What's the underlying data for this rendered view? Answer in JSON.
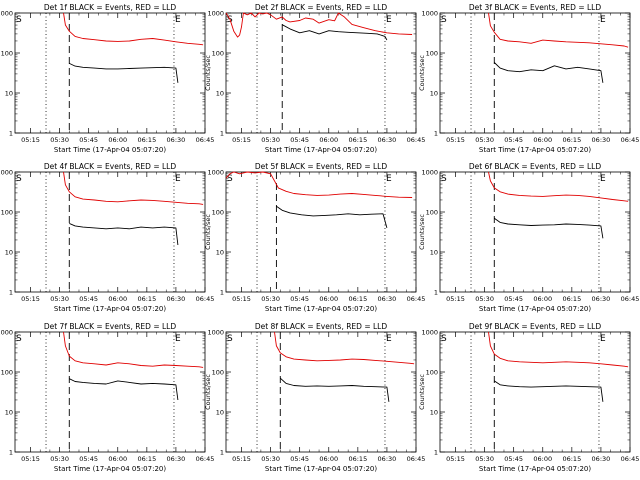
{
  "figure": {
    "y_label": "Counts/sec",
    "x_label": "Start Time (17-Apr-04 05:07:20)",
    "start_marker": "S",
    "end_marker": "E",
    "colors": {
      "events": "#000000",
      "lld": "#e00000",
      "frame": "#000000"
    }
  },
  "chart_data": [
    {
      "type": "line",
      "title": "Det 1f BLACK = Events, RED = LLD",
      "ylog": true,
      "ylim": [
        1,
        1000
      ],
      "yticks": [
        "1",
        "10",
        "100",
        "1000"
      ],
      "xticks": [
        "05:15",
        "05:30",
        "05:45",
        "06:00",
        "06:15",
        "06:30",
        "06:45"
      ],
      "x_minutes": [
        0,
        15,
        30,
        45,
        60,
        75,
        90
      ],
      "start_marker_time": "05:07",
      "end_marker_time": "06:29",
      "dotted_lines": [
        "05:23",
        "06:29"
      ],
      "dashed_line": "05:35",
      "series": [
        {
          "name": "Events",
          "color": "#000000",
          "x": [
            "05:35",
            "05:38",
            "05:42",
            "05:48",
            "05:54",
            "06:00",
            "06:06",
            "06:12",
            "06:18",
            "06:24",
            "06:30",
            "06:31"
          ],
          "y": [
            55,
            47,
            44,
            42,
            40,
            40,
            41,
            42,
            43,
            44,
            42,
            18
          ]
        },
        {
          "name": "LLD",
          "color": "#e00000",
          "x": [
            "05:32",
            "05:33",
            "05:35",
            "05:38",
            "05:42",
            "05:48",
            "05:54",
            "06:00",
            "06:06",
            "06:12",
            "06:18",
            "06:24",
            "06:30",
            "06:36",
            "06:42",
            "06:44"
          ],
          "y": [
            1000,
            500,
            350,
            260,
            230,
            215,
            200,
            195,
            200,
            220,
            230,
            210,
            190,
            175,
            165,
            160
          ]
        }
      ]
    },
    {
      "type": "line",
      "title": "Det 2f BLACK = Events, RED = LLD",
      "ylog": true,
      "ylim": [
        1,
        1000
      ],
      "yticks": [
        "1",
        "10",
        "100",
        "1000"
      ],
      "xticks": [
        "05:15",
        "05:30",
        "05:45",
        "06:00",
        "06:15",
        "06:30",
        "06:45"
      ],
      "x_minutes": [
        0,
        15,
        30,
        45,
        60,
        75,
        90
      ],
      "start_marker_time": "05:07",
      "end_marker_time": "06:29",
      "dotted_lines": [
        "05:23",
        "06:29"
      ],
      "dashed_line": "05:36",
      "series": [
        {
          "name": "Events",
          "color": "#000000",
          "x": [
            "05:36",
            "05:40",
            "05:45",
            "05:50",
            "05:55",
            "06:00",
            "06:05",
            "06:10",
            "06:15",
            "06:20",
            "06:25",
            "06:29",
            "06:30"
          ],
          "y": [
            510,
            400,
            320,
            360,
            300,
            360,
            340,
            330,
            320,
            310,
            300,
            260,
            210
          ]
        },
        {
          "name": "LLD",
          "color": "#e00000",
          "x": [
            "05:07",
            "05:09",
            "05:11",
            "05:13",
            "05:14",
            "05:15",
            "05:16",
            "05:18",
            "05:20",
            "05:22",
            "05:24",
            "05:26",
            "05:28",
            "05:30",
            "05:33",
            "05:36",
            "05:38",
            "05:40",
            "05:45",
            "05:48",
            "05:52",
            "05:55",
            "06:00",
            "06:03",
            "06:05",
            "06:08",
            "06:12",
            "06:18",
            "06:24",
            "06:30",
            "06:36",
            "06:43"
          ],
          "y": [
            1000,
            700,
            350,
            250,
            280,
            450,
            1000,
            900,
            1000,
            800,
            1000,
            950,
            1000,
            900,
            700,
            800,
            650,
            600,
            650,
            750,
            700,
            560,
            680,
            640,
            1000,
            800,
            520,
            430,
            360,
            320,
            300,
            290
          ]
        }
      ]
    },
    {
      "type": "line",
      "title": "Det 3f BLACK = Events, RED = LLD",
      "ylog": true,
      "ylim": [
        1,
        1000
      ],
      "yticks": [
        "1",
        "10",
        "100",
        "1000"
      ],
      "xticks": [
        "05:15",
        "05:30",
        "05:45",
        "06:00",
        "06:15",
        "06:30",
        "06:45"
      ],
      "x_minutes": [
        0,
        15,
        30,
        45,
        60,
        75,
        90
      ],
      "start_marker_time": "05:07",
      "end_marker_time": "06:29",
      "dotted_lines": [
        "05:23",
        "06:29"
      ],
      "dashed_line": "05:35",
      "series": [
        {
          "name": "Events",
          "color": "#000000",
          "x": [
            "05:35",
            "05:38",
            "05:42",
            "05:48",
            "05:54",
            "06:00",
            "06:06",
            "06:12",
            "06:18",
            "06:24",
            "06:30",
            "06:31"
          ],
          "y": [
            58,
            42,
            36,
            34,
            38,
            36,
            48,
            40,
            44,
            40,
            36,
            18
          ]
        },
        {
          "name": "LLD",
          "color": "#e00000",
          "x": [
            "05:32",
            "05:33",
            "05:35",
            "05:38",
            "05:42",
            "05:48",
            "05:54",
            "06:00",
            "06:06",
            "06:12",
            "06:18",
            "06:24",
            "06:30",
            "06:36",
            "06:42",
            "06:44"
          ],
          "y": [
            1000,
            480,
            330,
            220,
            200,
            190,
            175,
            210,
            200,
            190,
            185,
            180,
            170,
            160,
            150,
            140
          ]
        }
      ]
    },
    {
      "type": "line",
      "title": "Det 4f BLACK = Events, RED = LLD",
      "ylog": true,
      "ylim": [
        1,
        1000
      ],
      "yticks": [
        "1",
        "10",
        "100",
        "1000"
      ],
      "xticks": [
        "05:15",
        "05:30",
        "05:45",
        "06:00",
        "06:15",
        "06:30",
        "06:45"
      ],
      "x_minutes": [
        0,
        15,
        30,
        45,
        60,
        75,
        90
      ],
      "start_marker_time": "05:07",
      "end_marker_time": "06:29",
      "dotted_lines": [
        "05:23",
        "06:29"
      ],
      "dashed_line": "05:35",
      "series": [
        {
          "name": "Events",
          "color": "#000000",
          "x": [
            "05:35",
            "05:38",
            "05:42",
            "05:48",
            "05:54",
            "06:00",
            "06:06",
            "06:12",
            "06:18",
            "06:24",
            "06:30",
            "06:31"
          ],
          "y": [
            52,
            45,
            42,
            40,
            38,
            40,
            38,
            42,
            40,
            42,
            40,
            15
          ]
        },
        {
          "name": "LLD",
          "color": "#e00000",
          "x": [
            "05:32",
            "05:33",
            "05:35",
            "05:38",
            "05:42",
            "05:48",
            "05:54",
            "06:00",
            "06:06",
            "06:12",
            "06:18",
            "06:24",
            "06:30",
            "06:36",
            "06:42",
            "06:44"
          ],
          "y": [
            1000,
            480,
            320,
            240,
            210,
            200,
            185,
            180,
            190,
            200,
            195,
            185,
            175,
            165,
            160,
            155
          ]
        }
      ]
    },
    {
      "type": "line",
      "title": "Det 5f BLACK = Events, RED = LLD",
      "ylog": true,
      "ylim": [
        1,
        1000
      ],
      "yticks": [
        "1",
        "10",
        "100",
        "1000"
      ],
      "xticks": [
        "05:15",
        "05:30",
        "05:45",
        "06:00",
        "06:15",
        "06:30",
        "06:45"
      ],
      "x_minutes": [
        0,
        15,
        30,
        45,
        60,
        75,
        90
      ],
      "start_marker_time": "05:07",
      "end_marker_time": "06:29",
      "dotted_lines": [
        "05:23",
        "06:29"
      ],
      "dashed_line": "05:33",
      "series": [
        {
          "name": "Events",
          "color": "#000000",
          "x": [
            "05:33",
            "05:36",
            "05:40",
            "05:46",
            "05:52",
            "05:58",
            "06:04",
            "06:10",
            "06:16",
            "06:22",
            "06:28",
            "06:30"
          ],
          "y": [
            140,
            110,
            95,
            85,
            80,
            82,
            85,
            90,
            85,
            88,
            90,
            40
          ]
        },
        {
          "name": "LLD",
          "color": "#e00000",
          "x": [
            "05:07",
            "05:09",
            "05:11",
            "05:14",
            "05:18",
            "05:22",
            "05:26",
            "05:30",
            "05:34",
            "05:38",
            "05:42",
            "05:48",
            "05:54",
            "06:00",
            "06:06",
            "06:12",
            "06:18",
            "06:24",
            "06:30",
            "06:36",
            "06:43"
          ],
          "y": [
            700,
            900,
            1000,
            900,
            1000,
            950,
            1000,
            900,
            400,
            330,
            290,
            270,
            260,
            265,
            280,
            290,
            275,
            260,
            245,
            235,
            230
          ]
        }
      ]
    },
    {
      "type": "line",
      "title": "Det 6f BLACK = Events, RED = LLD",
      "ylog": true,
      "ylim": [
        1,
        1000
      ],
      "yticks": [
        "1",
        "10",
        "100",
        "1000"
      ],
      "xticks": [
        "05:15",
        "05:30",
        "05:45",
        "06:00",
        "06:15",
        "06:30",
        "06:45"
      ],
      "x_minutes": [
        0,
        15,
        30,
        45,
        60,
        75,
        90
      ],
      "start_marker_time": "05:07",
      "end_marker_time": "06:29",
      "dotted_lines": [
        "05:23",
        "06:29"
      ],
      "dashed_line": "05:35",
      "series": [
        {
          "name": "Events",
          "color": "#000000",
          "x": [
            "05:35",
            "05:38",
            "05:42",
            "05:48",
            "05:54",
            "06:00",
            "06:06",
            "06:12",
            "06:18",
            "06:24",
            "06:30",
            "06:31"
          ],
          "y": [
            70,
            55,
            50,
            48,
            46,
            47,
            48,
            50,
            49,
            47,
            45,
            22
          ]
        },
        {
          "name": "LLD",
          "color": "#e00000",
          "x": [
            "05:32",
            "05:33",
            "05:35",
            "05:38",
            "05:42",
            "05:48",
            "05:54",
            "06:00",
            "06:06",
            "06:12",
            "06:18",
            "06:24",
            "06:30",
            "06:36",
            "06:42",
            "06:44"
          ],
          "y": [
            1000,
            600,
            400,
            320,
            280,
            260,
            250,
            245,
            255,
            265,
            260,
            245,
            225,
            205,
            190,
            185
          ]
        }
      ]
    },
    {
      "type": "line",
      "title": "Det 7f BLACK = Events, RED = LLD",
      "ylog": true,
      "ylim": [
        1,
        1000
      ],
      "yticks": [
        "1",
        "10",
        "100",
        "1000"
      ],
      "xticks": [
        "05:15",
        "05:30",
        "05:45",
        "06:00",
        "06:15",
        "06:30",
        "06:45"
      ],
      "x_minutes": [
        0,
        15,
        30,
        45,
        60,
        75,
        90
      ],
      "start_marker_time": "05:07",
      "end_marker_time": "06:29",
      "dotted_lines": [
        "05:23",
        "06:29"
      ],
      "dashed_line": "05:35",
      "series": [
        {
          "name": "Events",
          "color": "#000000",
          "x": [
            "05:35",
            "05:38",
            "05:42",
            "05:48",
            "05:54",
            "06:00",
            "06:06",
            "06:12",
            "06:18",
            "06:24",
            "06:30",
            "06:31"
          ],
          "y": [
            68,
            58,
            55,
            52,
            50,
            60,
            55,
            50,
            52,
            50,
            48,
            20
          ]
        },
        {
          "name": "LLD",
          "color": "#e00000",
          "x": [
            "05:32",
            "05:33",
            "05:35",
            "05:38",
            "05:42",
            "05:48",
            "05:54",
            "06:00",
            "06:06",
            "06:12",
            "06:18",
            "06:24",
            "06:30",
            "06:36",
            "06:42",
            "06:44"
          ],
          "y": [
            1000,
            450,
            250,
            190,
            170,
            160,
            150,
            170,
            160,
            145,
            140,
            150,
            145,
            140,
            135,
            130
          ]
        }
      ]
    },
    {
      "type": "line",
      "title": "Det 8f BLACK = Events, RED = LLD",
      "ylog": true,
      "ylim": [
        1,
        1000
      ],
      "yticks": [
        "1",
        "10",
        "100",
        "1000"
      ],
      "xticks": [
        "05:15",
        "05:30",
        "05:45",
        "06:00",
        "06:15",
        "06:30",
        "06:45"
      ],
      "x_minutes": [
        0,
        15,
        30,
        45,
        60,
        75,
        90
      ],
      "start_marker_time": "05:07",
      "end_marker_time": "06:29",
      "dotted_lines": [
        "05:23",
        "06:29"
      ],
      "dashed_line": "05:35",
      "series": [
        {
          "name": "Events",
          "color": "#000000",
          "x": [
            "05:35",
            "05:38",
            "05:42",
            "05:48",
            "05:54",
            "06:00",
            "06:06",
            "06:12",
            "06:18",
            "06:24",
            "06:30",
            "06:31"
          ],
          "y": [
            70,
            52,
            46,
            44,
            45,
            44,
            45,
            46,
            44,
            43,
            42,
            18
          ]
        },
        {
          "name": "LLD",
          "color": "#e00000",
          "x": [
            "05:32",
            "05:33",
            "05:35",
            "05:38",
            "05:42",
            "05:48",
            "05:54",
            "06:00",
            "06:06",
            "06:12",
            "06:18",
            "06:24",
            "06:30",
            "06:36",
            "06:42",
            "06:44"
          ],
          "y": [
            1000,
            450,
            300,
            240,
            210,
            200,
            190,
            195,
            200,
            210,
            205,
            195,
            185,
            175,
            165,
            160
          ]
        }
      ]
    },
    {
      "type": "line",
      "title": "Det 9f BLACK = Events, RED = LLD",
      "ylog": true,
      "ylim": [
        1,
        1000
      ],
      "yticks": [
        "1",
        "10",
        "100",
        "1000"
      ],
      "xticks": [
        "05:15",
        "05:30",
        "05:45",
        "06:00",
        "06:15",
        "06:30",
        "06:45"
      ],
      "x_minutes": [
        0,
        15,
        30,
        45,
        60,
        75,
        90
      ],
      "start_marker_time": "05:07",
      "end_marker_time": "06:29",
      "dotted_lines": [
        "05:23",
        "06:29"
      ],
      "dashed_line": "05:35",
      "series": [
        {
          "name": "Events",
          "color": "#000000",
          "x": [
            "05:35",
            "05:38",
            "05:42",
            "05:48",
            "05:54",
            "06:00",
            "06:06",
            "06:12",
            "06:18",
            "06:24",
            "06:30",
            "06:31"
          ],
          "y": [
            60,
            48,
            45,
            43,
            42,
            43,
            44,
            45,
            44,
            43,
            42,
            18
          ]
        },
        {
          "name": "LLD",
          "color": "#e00000",
          "x": [
            "05:32",
            "05:33",
            "05:35",
            "05:38",
            "05:42",
            "05:48",
            "05:54",
            "06:00",
            "06:06",
            "06:12",
            "06:18",
            "06:24",
            "06:30",
            "06:36",
            "06:42",
            "06:44"
          ],
          "y": [
            1000,
            450,
            280,
            220,
            190,
            180,
            175,
            170,
            175,
            180,
            175,
            170,
            160,
            150,
            140,
            135
          ]
        }
      ]
    }
  ]
}
